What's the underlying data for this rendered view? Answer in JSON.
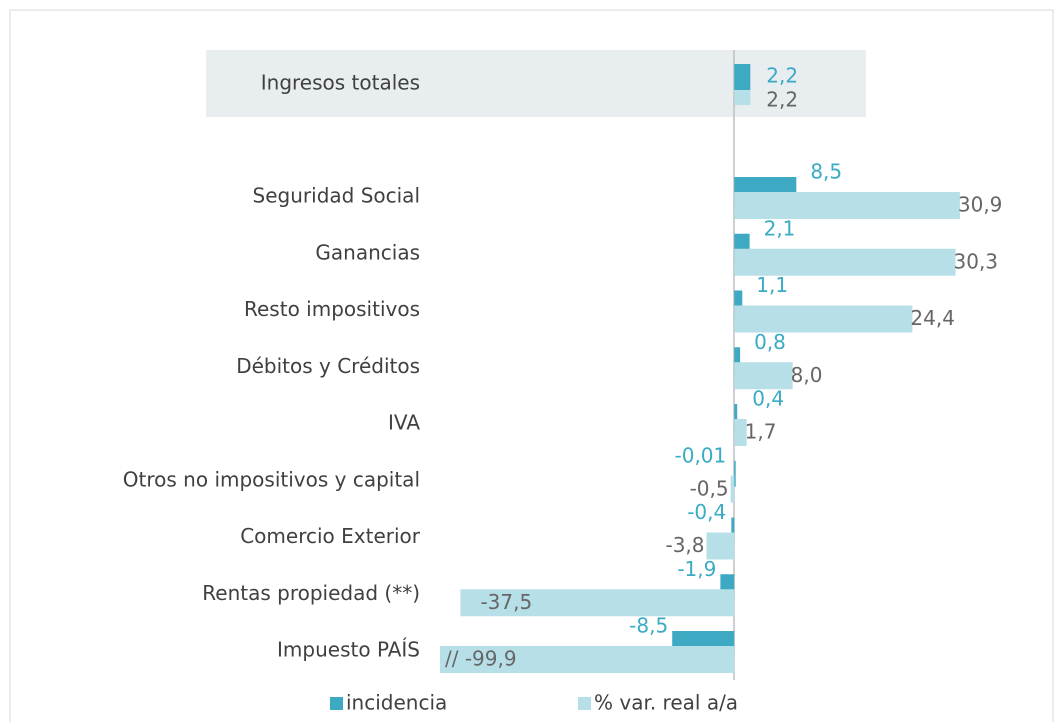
{
  "chart_data": {
    "type": "hbar",
    "categories": [
      "Ingresos totales",
      "Seguridad Social",
      "Ganancias",
      "Resto impositivos",
      "Débitos y Créditos",
      "IVA",
      "Otros no impositivos y capital",
      "Comercio Exterior",
      "Rentas propiedad (**)",
      "Impuesto PAÍS"
    ],
    "series": [
      {
        "name": "incidencia",
        "color": "#3ea9c2",
        "label_color": "#3aabc4",
        "values": [
          2.2,
          8.5,
          2.1,
          1.1,
          0.8,
          0.4,
          -0.01,
          -0.4,
          -1.9,
          -8.5
        ],
        "value_labels": [
          "2,2",
          "8,5",
          "2,1",
          "1,1",
          "0,8",
          "0,4",
          "-0,01",
          "-0,4",
          "-1,9",
          "-8,5"
        ]
      },
      {
        "name": "% var. real a/a",
        "color": "#b7dfe8",
        "label_color": "#666666",
        "values": [
          2.2,
          30.9,
          30.3,
          24.4,
          8.0,
          1.7,
          -0.5,
          -3.8,
          -37.5,
          -99.9
        ],
        "value_labels": [
          "2,2",
          "30,9",
          "30,3",
          "24,4",
          "8,0",
          "1,7",
          "-0,5",
          "-3,8",
          "-37,5",
          "// -99,9"
        ]
      }
    ],
    "xlim": [
      -40.3,
      31.6
    ],
    "legend": "bottom"
  }
}
